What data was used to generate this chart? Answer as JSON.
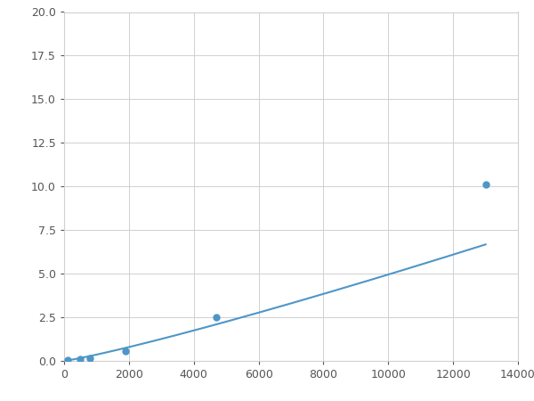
{
  "x": [
    100,
    500,
    800,
    1900,
    4700,
    13000
  ],
  "y": [
    0.05,
    0.12,
    0.15,
    0.55,
    2.5,
    10.1
  ],
  "line_color": "#4e96c8",
  "marker_color": "#4e96c8",
  "marker_size": 5,
  "line_width": 1.5,
  "xlim": [
    0,
    14000
  ],
  "ylim": [
    0,
    20
  ],
  "xticks": [
    0,
    2000,
    4000,
    6000,
    8000,
    10000,
    12000,
    14000
  ],
  "yticks": [
    0.0,
    2.5,
    5.0,
    7.5,
    10.0,
    12.5,
    15.0,
    17.5,
    20.0
  ],
  "grid": true,
  "background_color": "#ffffff",
  "figsize": [
    6.0,
    4.5
  ],
  "dpi": 100
}
